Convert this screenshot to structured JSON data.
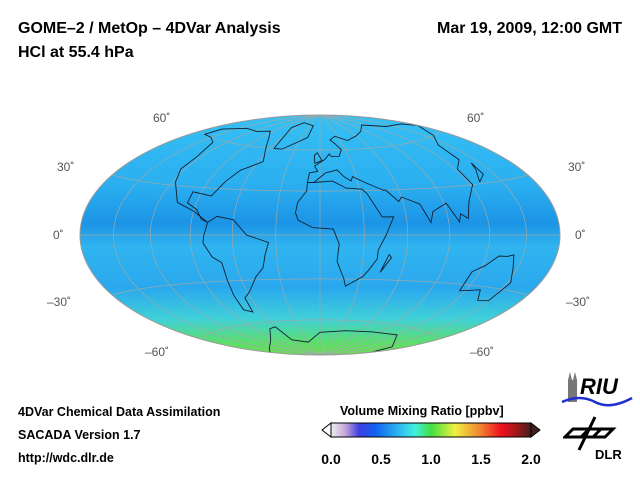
{
  "header": {
    "title": "GOME–2 / MetOp – 4DVar Analysis",
    "subtitle": "HCl at 55.4 hPa",
    "date": "Mar 19, 2009, 12:00 GMT"
  },
  "map": {
    "projection": "Hammer",
    "lat_labels": {
      "n60": "60˚",
      "n30": "30˚",
      "eq": "0˚",
      "s30": "–30˚",
      "s60": "–60˚"
    },
    "colors": {
      "ocean_field": "#2aaef0",
      "band": "#1c94e6",
      "high_south": "#5ede6a"
    }
  },
  "footer": {
    "line1": "4DVar Chemical Data Assimilation",
    "line2": "SACADA Version 1.7",
    "line3": "http://wdc.dlr.de"
  },
  "colorbar": {
    "title": "Volume Mixing Ratio [ppbv]",
    "ticks": [
      "0.0",
      "0.5",
      "1.0",
      "1.5",
      "2.0"
    ],
    "min": 0,
    "max": 2
  },
  "logos": {
    "riu": "RIU",
    "dlr": "DLR"
  }
}
